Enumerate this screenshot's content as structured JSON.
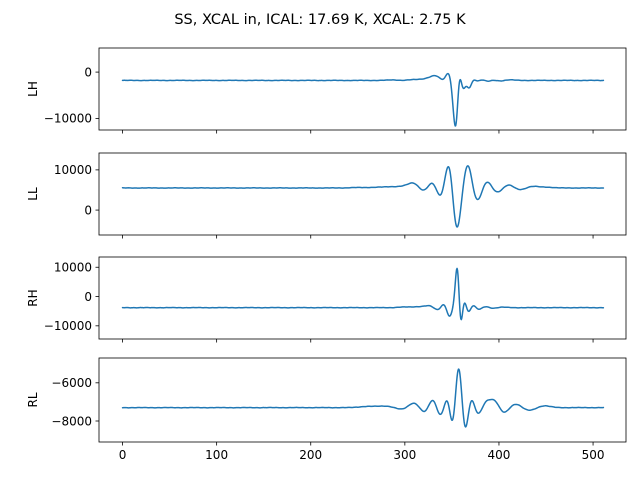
{
  "figure": {
    "title": "SS, XCAL in, ICAL: 17.69 K, XCAL: 2.75 K",
    "line_color": "#1f77b4"
  },
  "chart_data": [
    {
      "type": "line",
      "ylabel": "LH",
      "xlim": [
        -25,
        535
      ],
      "ylim": [
        -12500,
        5200
      ],
      "yticks": [
        -10000,
        0
      ],
      "ytick_labels": [
        "−10000",
        "0"
      ],
      "baseline": -1800,
      "events": [
        {
          "x": 290,
          "amp": 150,
          "width": 10
        },
        {
          "x": 297,
          "amp": -120,
          "width": 9
        },
        {
          "x": 305,
          "amp": 120,
          "width": 9
        },
        {
          "x": 318,
          "amp": 200,
          "width": 10
        },
        {
          "x": 330,
          "amp": 500,
          "width": 9
        },
        {
          "x": 337,
          "amp": 1000,
          "width": 9
        },
        {
          "x": 343,
          "amp": -1500,
          "width": 8
        },
        {
          "x": 349,
          "amp": 5000,
          "width": 6
        },
        {
          "x": 352,
          "amp": -6000,
          "width": 5
        },
        {
          "x": 355,
          "amp": -9800,
          "width": 4
        },
        {
          "x": 357,
          "amp": 6000,
          "width": 3
        },
        {
          "x": 359,
          "amp": 2000,
          "width": 3
        },
        {
          "x": 362,
          "amp": -3000,
          "width": 4
        },
        {
          "x": 365,
          "amp": 1800,
          "width": 4
        },
        {
          "x": 368,
          "amp": -2800,
          "width": 4
        },
        {
          "x": 372,
          "amp": 1200,
          "width": 5
        },
        {
          "x": 376,
          "amp": -900,
          "width": 6
        },
        {
          "x": 381,
          "amp": 700,
          "width": 6
        },
        {
          "x": 387,
          "amp": -500,
          "width": 7
        },
        {
          "x": 393,
          "amp": 300,
          "width": 7
        },
        {
          "x": 400,
          "amp": -200,
          "width": 8
        },
        {
          "x": 410,
          "amp": 150,
          "width": 8
        }
      ]
    },
    {
      "type": "line",
      "ylabel": "LL",
      "xlim": [
        -25,
        535
      ],
      "ylim": [
        -6200,
        14200
      ],
      "yticks": [
        0,
        10000
      ],
      "ytick_labels": [
        "0",
        "10000"
      ],
      "baseline": 5500,
      "events": [
        {
          "x": 250,
          "amp": 100,
          "width": 12
        },
        {
          "x": 270,
          "amp": 150,
          "width": 12
        },
        {
          "x": 285,
          "amp": 250,
          "width": 10
        },
        {
          "x": 300,
          "amp": 400,
          "width": 10
        },
        {
          "x": 310,
          "amp": 1200,
          "width": 8
        },
        {
          "x": 320,
          "amp": -1000,
          "width": 8
        },
        {
          "x": 330,
          "amp": 2000,
          "width": 7
        },
        {
          "x": 338,
          "amp": -3000,
          "width": 7
        },
        {
          "x": 347,
          "amp": 7500,
          "width": 6
        },
        {
          "x": 355,
          "amp": -11000,
          "width": 6
        },
        {
          "x": 367,
          "amp": 6200,
          "width": 6
        },
        {
          "x": 377,
          "amp": -3500,
          "width": 7
        },
        {
          "x": 387,
          "amp": 2000,
          "width": 7
        },
        {
          "x": 398,
          "amp": -1200,
          "width": 8
        },
        {
          "x": 410,
          "amp": 900,
          "width": 8
        },
        {
          "x": 422,
          "amp": -500,
          "width": 9
        },
        {
          "x": 435,
          "amp": 400,
          "width": 9
        },
        {
          "x": 450,
          "amp": 200,
          "width": 10
        }
      ]
    },
    {
      "type": "line",
      "ylabel": "RH",
      "xlim": [
        -25,
        535
      ],
      "ylim": [
        -14500,
        13500
      ],
      "yticks": [
        -10000,
        0,
        10000
      ],
      "ytick_labels": [
        "−10000",
        "0",
        "10000"
      ],
      "baseline": -3800,
      "events": [
        {
          "x": 300,
          "amp": 200,
          "width": 10
        },
        {
          "x": 315,
          "amp": 300,
          "width": 9
        },
        {
          "x": 328,
          "amp": 800,
          "width": 8
        },
        {
          "x": 336,
          "amp": -1500,
          "width": 7
        },
        {
          "x": 343,
          "amp": 3000,
          "width": 6
        },
        {
          "x": 348,
          "amp": -6000,
          "width": 5
        },
        {
          "x": 351,
          "amp": 3000,
          "width": 4
        },
        {
          "x": 356,
          "amp": 16000,
          "width": 3
        },
        {
          "x": 359,
          "amp": -10000,
          "width": 3
        },
        {
          "x": 363,
          "amp": 4000,
          "width": 4
        },
        {
          "x": 367,
          "amp": -3000,
          "width": 4
        },
        {
          "x": 372,
          "amp": 1500,
          "width": 5
        },
        {
          "x": 378,
          "amp": -1000,
          "width": 6
        },
        {
          "x": 385,
          "amp": 600,
          "width": 6
        },
        {
          "x": 393,
          "amp": -300,
          "width": 7
        },
        {
          "x": 402,
          "amp": 200,
          "width": 8
        }
      ]
    },
    {
      "type": "line",
      "ylabel": "RL",
      "xlim": [
        -25,
        535
      ],
      "ylim": [
        -9100,
        -4700
      ],
      "yticks": [
        -8000,
        -6000
      ],
      "ytick_labels": [
        "−8000",
        "−6000"
      ],
      "xticks": [
        0,
        100,
        200,
        300,
        400,
        500
      ],
      "xtick_labels": [
        "0",
        "100",
        "200",
        "300",
        "400",
        "500"
      ],
      "baseline": -7300,
      "events": [
        {
          "x": 260,
          "amp": 60,
          "width": 12
        },
        {
          "x": 280,
          "amp": 80,
          "width": 12
        },
        {
          "x": 298,
          "amp": -120,
          "width": 10
        },
        {
          "x": 310,
          "amp": 300,
          "width": 9
        },
        {
          "x": 322,
          "amp": -400,
          "width": 8
        },
        {
          "x": 330,
          "amp": 700,
          "width": 7
        },
        {
          "x": 338,
          "amp": -700,
          "width": 7
        },
        {
          "x": 346,
          "amp": 1000,
          "width": 6
        },
        {
          "x": 351,
          "amp": -1700,
          "width": 5
        },
        {
          "x": 357,
          "amp": 2600,
          "width": 5
        },
        {
          "x": 364,
          "amp": -1500,
          "width": 5
        },
        {
          "x": 370,
          "amp": 700,
          "width": 5
        },
        {
          "x": 378,
          "amp": -400,
          "width": 6
        },
        {
          "x": 386,
          "amp": 300,
          "width": 6
        },
        {
          "x": 395,
          "amp": 400,
          "width": 7
        },
        {
          "x": 405,
          "amp": -300,
          "width": 7
        },
        {
          "x": 418,
          "amp": 200,
          "width": 8
        },
        {
          "x": 432,
          "amp": -150,
          "width": 9
        },
        {
          "x": 448,
          "amp": 100,
          "width": 9
        }
      ]
    }
  ]
}
